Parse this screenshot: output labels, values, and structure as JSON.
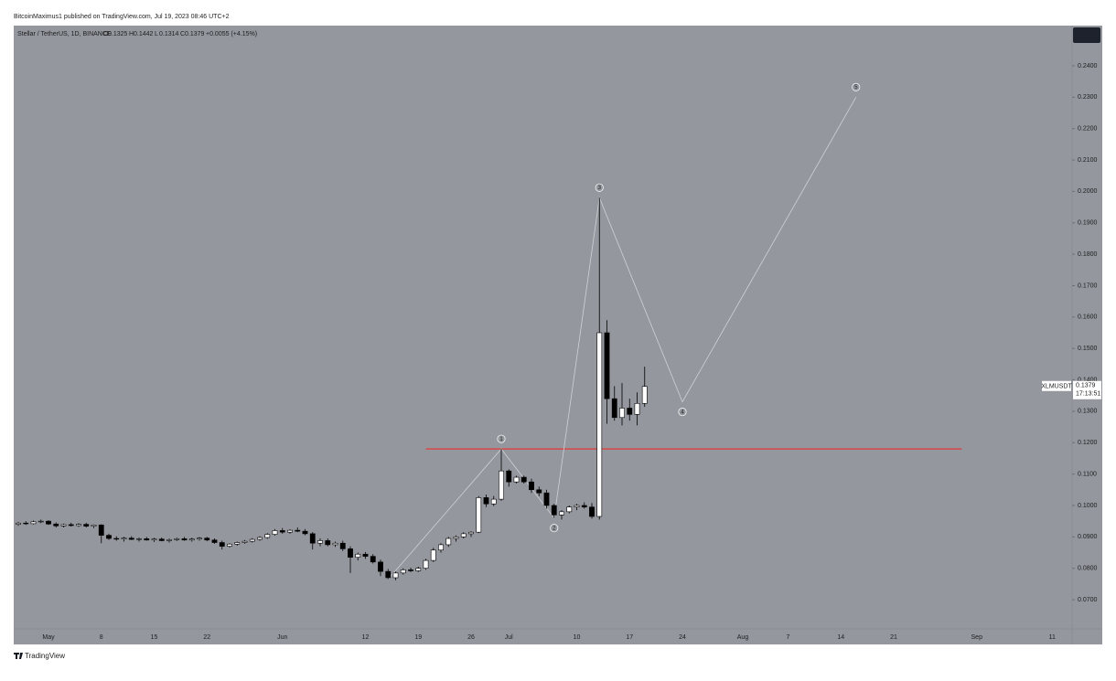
{
  "header": {
    "publisher": "BitcoinMaximus1 published on TradingView.com, Jul 19, 2023 08:46 UTC+2"
  },
  "footer": {
    "brand": "TradingView"
  },
  "chart_data": {
    "type": "candlestick",
    "title": "Stellar / TetherUS, 1D, BINANCE",
    "ohlc_letters": [
      "O",
      "H",
      "L",
      "C"
    ],
    "change_label": "+0.0055 (+4.15%)",
    "categories": [
      null,
      null,
      null,
      null,
      "May",
      null,
      null,
      null,
      null,
      null,
      null,
      "8",
      null,
      null,
      null,
      null,
      null,
      null,
      "15",
      null,
      null,
      null,
      null,
      null,
      null,
      "22",
      null,
      null,
      null,
      null,
      null,
      null,
      null,
      null,
      null,
      "Jun",
      null,
      null,
      null,
      null,
      null,
      null,
      null,
      null,
      null,
      null,
      "12",
      null,
      null,
      null,
      null,
      null,
      null,
      "19",
      null,
      null,
      null,
      null,
      null,
      null,
      "26",
      null,
      null,
      null,
      null,
      "Jul",
      null,
      null,
      null,
      null,
      null,
      null,
      null,
      null,
      "10",
      null,
      null,
      null,
      null,
      null,
      null,
      "17",
      null,
      null,
      null,
      null,
      null,
      null,
      "24",
      null,
      null,
      null,
      null,
      null,
      null,
      null,
      "Aug",
      null,
      null,
      null,
      null,
      null,
      "7",
      null,
      null,
      null,
      null,
      null,
      null,
      "14",
      null,
      null,
      null,
      null,
      null,
      null,
      "21",
      null,
      null,
      null,
      null,
      null,
      null,
      null,
      null,
      null,
      null,
      "Sep",
      null,
      null,
      null,
      null,
      null,
      null,
      null,
      null,
      null,
      "11",
      null,
      null
    ],
    "open": [
      0.094,
      0.0944,
      0.0942,
      0.0948,
      0.095,
      0.0941,
      0.0935,
      0.0939,
      0.0936,
      0.094,
      0.0934,
      0.0938,
      0.0905,
      0.0895,
      0.0893,
      0.0896,
      0.0892,
      0.0894,
      0.089,
      0.0893,
      0.0888,
      0.0891,
      0.0894,
      0.089,
      0.0893,
      0.0896,
      0.089,
      0.0882,
      0.087,
      0.0877,
      0.0882,
      0.0886,
      0.0892,
      0.0898,
      0.0908,
      0.092,
      0.0915,
      0.0921,
      0.0918,
      0.091,
      0.088,
      0.0888,
      0.0875,
      0.088,
      0.0862,
      0.0835,
      0.0845,
      0.0838,
      0.082,
      0.079,
      0.077,
      0.0785,
      0.0795,
      0.0792,
      0.08,
      0.0825,
      0.0858,
      0.0875,
      0.0895,
      0.09,
      0.091,
      0.0915,
      0.1025,
      0.1005,
      0.102,
      0.111,
      0.1075,
      0.109,
      0.1075,
      0.105,
      0.104,
      0.1,
      0.097,
      0.098,
      0.0995,
      0.1,
      0.0995,
      0.0965,
      0.155,
      0.134,
      0.128,
      0.131,
      0.129,
      0.1325,
      null,
      null,
      null,
      null,
      null,
      null,
      null,
      null,
      null,
      null,
      null,
      null,
      null,
      null,
      null,
      null,
      null,
      null,
      null,
      null,
      null,
      null,
      null,
      null,
      null,
      null,
      null,
      null,
      null,
      null,
      null,
      null,
      null,
      null,
      null,
      null,
      null,
      null,
      null,
      null,
      null,
      null,
      null,
      null,
      null,
      null,
      null,
      null,
      null,
      null,
      null,
      null,
      null,
      null,
      null,
      null
    ],
    "high": [
      0.0948,
      0.095,
      0.0952,
      0.0955,
      0.0953,
      0.0946,
      0.0942,
      0.0945,
      0.0944,
      0.0945,
      0.094,
      0.094,
      0.091,
      0.0902,
      0.09,
      0.0902,
      0.0898,
      0.09,
      0.0897,
      0.0898,
      0.0895,
      0.0898,
      0.09,
      0.0897,
      0.0899,
      0.09,
      0.0895,
      0.0888,
      0.088,
      0.0885,
      0.089,
      0.0896,
      0.0902,
      0.0912,
      0.0925,
      0.0928,
      0.0924,
      0.093,
      0.0925,
      0.0915,
      0.0895,
      0.0895,
      0.0885,
      0.0888,
      0.087,
      0.085,
      0.0852,
      0.0845,
      0.0828,
      0.0798,
      0.079,
      0.08,
      0.0802,
      0.0805,
      0.083,
      0.0865,
      0.088,
      0.09,
      0.0905,
      0.0915,
      0.0918,
      0.103,
      0.1035,
      0.103,
      0.118,
      0.1115,
      0.1095,
      0.1095,
      0.1085,
      0.106,
      0.105,
      0.1005,
      0.0985,
      0.1,
      0.1005,
      0.101,
      0.1008,
      0.198,
      0.159,
      0.138,
      0.139,
      0.134,
      0.136,
      0.1442,
      null,
      null,
      null,
      null,
      null,
      null,
      null,
      null,
      null,
      null,
      null,
      null,
      null,
      null,
      null,
      null,
      null,
      null,
      null,
      null,
      null,
      null,
      null,
      null,
      null,
      null,
      null,
      null,
      null,
      null,
      null,
      null,
      null,
      null,
      null,
      null,
      null,
      null,
      null,
      null,
      null,
      null,
      null,
      null,
      null,
      null,
      null,
      null,
      null,
      null,
      null,
      null,
      null,
      null,
      null,
      null
    ],
    "low": [
      0.0935,
      0.0938,
      0.094,
      0.0944,
      0.0938,
      0.093,
      0.093,
      0.0933,
      0.0932,
      0.093,
      0.0928,
      0.088,
      0.089,
      0.0888,
      0.0885,
      0.089,
      0.0885,
      0.0888,
      0.0884,
      0.0886,
      0.0882,
      0.0887,
      0.0888,
      0.0885,
      0.0888,
      0.0886,
      0.0878,
      0.086,
      0.0866,
      0.0872,
      0.0878,
      0.0882,
      0.0888,
      0.0894,
      0.0904,
      0.091,
      0.091,
      0.0915,
      0.0905,
      0.086,
      0.087,
      0.087,
      0.0868,
      0.0855,
      0.0785,
      0.0825,
      0.083,
      0.0815,
      0.0775,
      0.0765,
      0.0762,
      0.078,
      0.0788,
      0.0788,
      0.0795,
      0.082,
      0.085,
      0.0868,
      0.0885,
      0.0895,
      0.09,
      0.0912,
      0.0995,
      0.0998,
      0.1015,
      0.106,
      0.107,
      0.107,
      0.104,
      0.103,
      0.099,
      0.096,
      0.0955,
      0.0975,
      0.0985,
      0.099,
      0.0958,
      0.0955,
      0.126,
      0.127,
      0.1255,
      0.127,
      0.1255,
      0.1314,
      null,
      null,
      null,
      null,
      null,
      null,
      null,
      null,
      null,
      null,
      null,
      null,
      null,
      null,
      null,
      null,
      null,
      null,
      null,
      null,
      null,
      null,
      null,
      null,
      null,
      null,
      null,
      null,
      null,
      null,
      null,
      null,
      null,
      null,
      null,
      null,
      null,
      null,
      null,
      null,
      null,
      null,
      null,
      null,
      null,
      null,
      null,
      null,
      null,
      null,
      null,
      null,
      null,
      null,
      null,
      null
    ],
    "close": [
      0.0944,
      0.0942,
      0.0948,
      0.095,
      0.0941,
      0.0935,
      0.0939,
      0.0936,
      0.094,
      0.0934,
      0.0938,
      0.0905,
      0.0895,
      0.0893,
      0.0896,
      0.0892,
      0.0894,
      0.089,
      0.0893,
      0.0888,
      0.0891,
      0.0894,
      0.089,
      0.0893,
      0.0896,
      0.089,
      0.0882,
      0.087,
      0.0877,
      0.0882,
      0.0886,
      0.0892,
      0.0898,
      0.0908,
      0.092,
      0.0915,
      0.0921,
      0.0918,
      0.091,
      0.088,
      0.0888,
      0.0875,
      0.088,
      0.0862,
      0.0835,
      0.0845,
      0.0838,
      0.082,
      0.079,
      0.077,
      0.0785,
      0.0795,
      0.0792,
      0.08,
      0.0825,
      0.0858,
      0.0875,
      0.0895,
      0.09,
      0.091,
      0.0915,
      0.1025,
      0.1005,
      0.102,
      0.111,
      0.1075,
      0.109,
      0.1075,
      0.105,
      0.104,
      0.1,
      0.097,
      0.098,
      0.0995,
      0.1,
      0.0995,
      0.0965,
      0.155,
      0.134,
      0.128,
      0.131,
      0.129,
      0.1325,
      0.1379,
      null,
      null,
      null,
      null,
      null,
      null,
      null,
      null,
      null,
      null,
      null,
      null,
      null,
      null,
      null,
      null,
      null,
      null,
      null,
      null,
      null,
      null,
      null,
      null,
      null,
      null,
      null,
      null,
      null,
      null,
      null,
      null,
      null,
      null,
      null,
      null,
      null,
      null,
      null,
      null,
      null,
      null,
      null,
      null,
      null,
      null,
      null,
      null,
      null,
      null,
      null,
      null,
      null,
      null,
      null,
      null
    ],
    "up_color": "#ffffff",
    "down_color": "#000000",
    "ylim": [
      0.0607,
      0.2528
    ],
    "yticks": [
      {
        "value": 0.07,
        "label": "0.0700"
      },
      {
        "value": 0.08,
        "label": "0.0800"
      },
      {
        "value": 0.09,
        "label": "0.0900"
      },
      {
        "value": 0.1,
        "label": "0.1000"
      },
      {
        "value": 0.11,
        "label": "0.1100"
      },
      {
        "value": 0.12,
        "label": "0.1200"
      },
      {
        "value": 0.13,
        "label": "0.1300"
      },
      {
        "value": 0.14,
        "label": "0.1400"
      },
      {
        "value": 0.15,
        "label": "0.1500"
      },
      {
        "value": 0.16,
        "label": "0.1600"
      },
      {
        "value": 0.17,
        "label": "0.1700"
      },
      {
        "value": 0.18,
        "label": "0.1800"
      },
      {
        "value": 0.19,
        "label": "0.1900"
      },
      {
        "value": 0.2,
        "label": "0.2000"
      },
      {
        "value": 0.21,
        "label": "0.2100"
      },
      {
        "value": 0.22,
        "label": "0.2200"
      },
      {
        "value": 0.23,
        "label": "0.2300"
      },
      {
        "value": 0.24,
        "label": "0.2400"
      }
    ],
    "price_label": {
      "symbol": "XLMUSDT",
      "countdown": "17:13:51"
    },
    "wave": {
      "color": "#d0d2d6",
      "points": [
        {
          "x": 49,
          "y": 0.0765
        },
        {
          "x": 64,
          "y": 0.118,
          "label": "1"
        },
        {
          "x": 71,
          "y": 0.096,
          "label": "2"
        },
        {
          "x": 77,
          "y": 0.198,
          "label": "3"
        },
        {
          "x": 88,
          "y": 0.133,
          "label": "4"
        },
        {
          "x": 111,
          "y": 0.23,
          "label": "5"
        }
      ]
    },
    "resistance": {
      "value": 0.118,
      "from": 54,
      "to": 125,
      "color": "#e53935"
    }
  }
}
